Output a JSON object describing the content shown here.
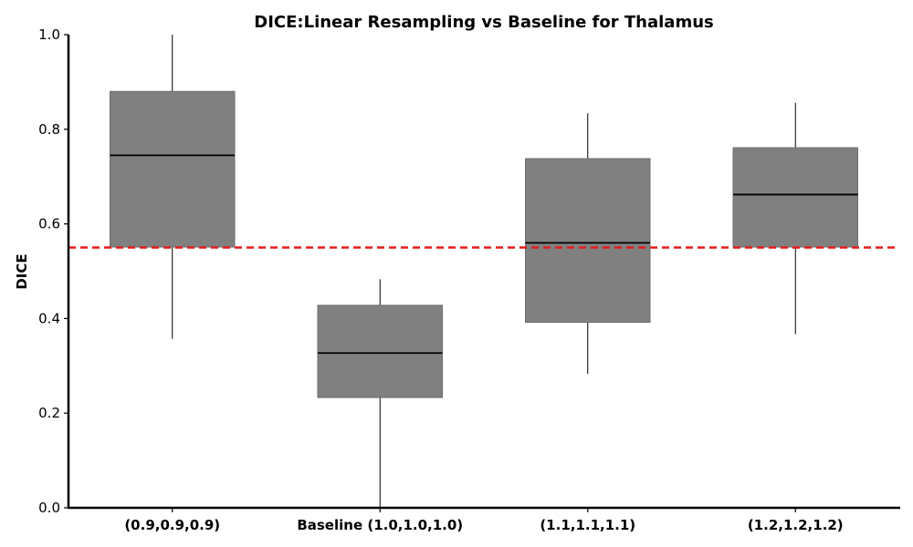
{
  "chart_data": {
    "type": "box",
    "title": "DICE:Linear Resampling vs Baseline for Thalamus",
    "xlabel": "",
    "ylabel": "DICE",
    "ylim": [
      0.0,
      1.0
    ],
    "yticks": [
      "0.0",
      "0.2",
      "0.4",
      "0.6",
      "0.8",
      "1.0"
    ],
    "categories": [
      "(0.9,0.9,0.9)",
      "Baseline (1.0,1.0,1.0)",
      "(1.1,1.1,1.1)",
      "(1.2,1.2,1.2)"
    ],
    "boxes": [
      {
        "whisker_low": 0.357,
        "q1": 0.551,
        "median": 0.745,
        "q3": 0.88,
        "whisker_high": 1.0
      },
      {
        "whisker_low": 0.0,
        "q1": 0.233,
        "median": 0.327,
        "q3": 0.428,
        "whisker_high": 0.483
      },
      {
        "whisker_low": 0.283,
        "q1": 0.392,
        "median": 0.56,
        "q3": 0.738,
        "whisker_high": 0.834
      },
      {
        "whisker_low": 0.367,
        "q1": 0.551,
        "median": 0.662,
        "q3": 0.761,
        "whisker_high": 0.856
      }
    ],
    "reference_line": {
      "value": 0.55,
      "style": "dashed",
      "color": "#e41a1c"
    },
    "box_color": "#808080",
    "grid": false,
    "legend": "none"
  }
}
